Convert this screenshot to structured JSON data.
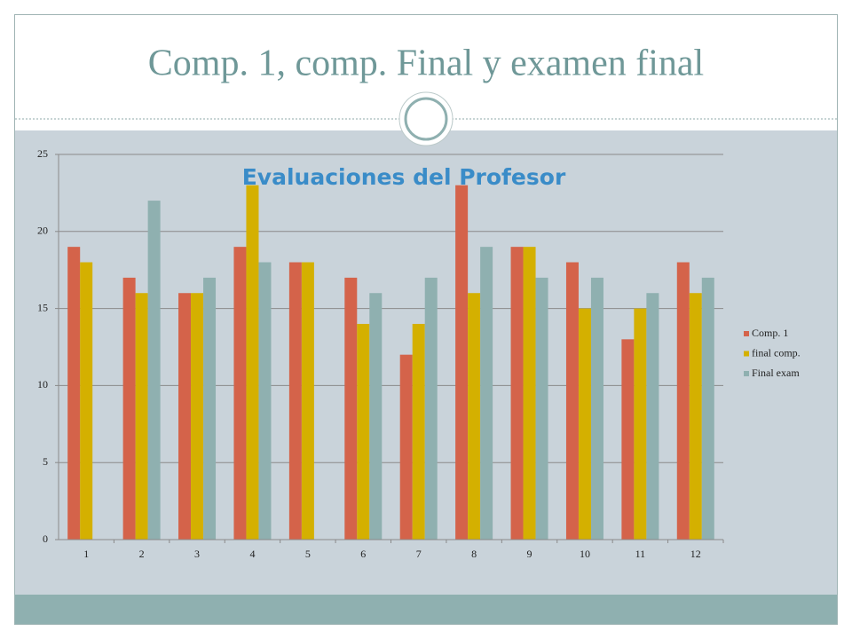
{
  "slide_title": "Comp. 1, comp. Final y examen final",
  "chart_data": {
    "type": "bar",
    "title": "Evaluaciones del  Profesor",
    "categories": [
      "1",
      "2",
      "3",
      "4",
      "5",
      "6",
      "7",
      "8",
      "9",
      "10",
      "11",
      "12"
    ],
    "series": [
      {
        "name": "Comp. 1",
        "color": "#d4634a",
        "values": [
          19,
          17,
          16,
          19,
          18,
          17,
          12,
          23,
          19,
          18,
          13,
          18
        ]
      },
      {
        "name": "final comp.",
        "color": "#d4b000",
        "values": [
          18,
          16,
          16,
          23,
          18,
          14,
          14,
          16,
          19,
          15,
          15,
          16
        ]
      },
      {
        "name": "Final exam",
        "color": "#8fb0b0",
        "values": [
          null,
          22,
          17,
          18,
          null,
          16,
          17,
          19,
          17,
          17,
          16,
          17
        ]
      }
    ],
    "ylim": [
      0,
      25
    ],
    "yticks": [
      0,
      5,
      10,
      15,
      20,
      25
    ],
    "grid": true,
    "legend": "right"
  }
}
